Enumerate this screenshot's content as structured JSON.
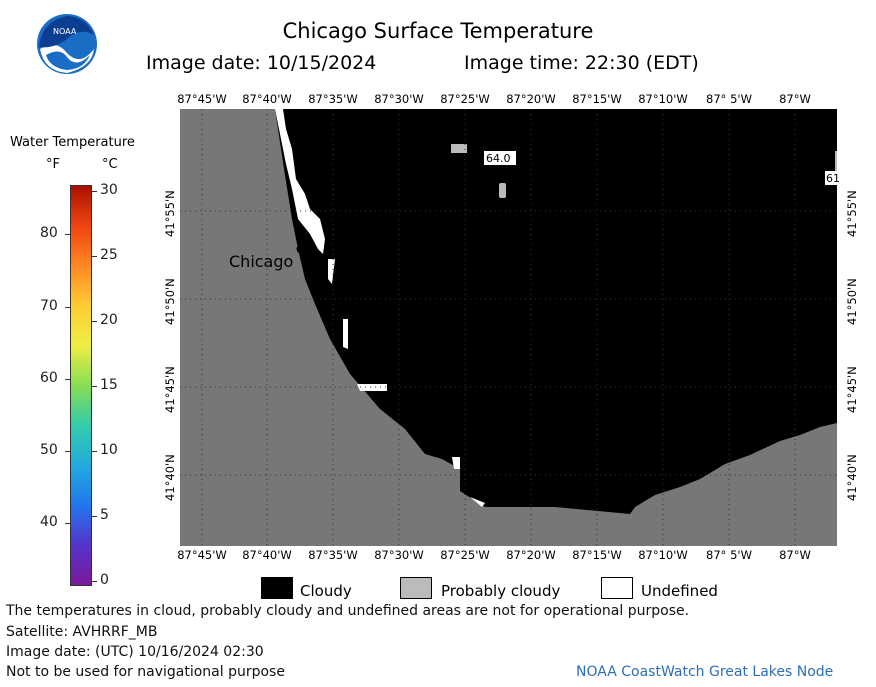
{
  "header": {
    "title": "Chicago Surface Temperature",
    "image_date": "Image date: 10/15/2024",
    "image_time": "Image time: 22:30 (EDT)"
  },
  "logo": {
    "text": "NOAA"
  },
  "scale": {
    "title": "Water Temperature",
    "unit_f": "°F",
    "unit_c": "°C",
    "f_ticks": [
      "80",
      "70",
      "60",
      "50",
      "40"
    ],
    "c_ticks": [
      "30",
      "25",
      "20",
      "15",
      "10",
      "5",
      "0"
    ],
    "range_c": [
      0,
      30
    ],
    "colors": [
      "#7a1a9a",
      "#5533cc",
      "#2277ee",
      "#22aadd",
      "#33ccaa",
      "#88dd55",
      "#eeee44",
      "#ffcc33",
      "#ff8822",
      "#ee4411",
      "#aa1100"
    ]
  },
  "map": {
    "top_ticks": [
      "87°45'W",
      "87°40'W",
      "87°35'W",
      "87°30'W",
      "87°25'W",
      "87°20'W",
      "87°15'W",
      "87°10'W",
      "87° 5'W",
      "87°W"
    ],
    "bottom_ticks": [
      "87°45'W",
      "87°40'W",
      "87°35'W",
      "87°30'W",
      "87°25'W",
      "87°20'W",
      "87°15'W",
      "87°10'W",
      "87° 5'W",
      "87°W"
    ],
    "left_ticks": [
      "41°55'N",
      "41°50'N",
      "41°45'N",
      "41°40'N"
    ],
    "right_ticks": [
      "41°55'N",
      "41°50'N",
      "41°45'N",
      "41°40'N"
    ],
    "city_label": "Chicago",
    "temp_labels": [
      "64.0",
      "61"
    ],
    "colors": {
      "land": "#777777",
      "cloud": "#000000",
      "probably_cloudy": "#bbbbbb",
      "undefined": "#ffffff"
    }
  },
  "legend": {
    "cloudy": "Cloudy",
    "probably_cloudy": "Probably cloudy",
    "undefined": "Undefined"
  },
  "footer": {
    "disclaimer": "The temperatures in cloud, probably cloudy and undefined areas are not for operational purpose.",
    "satellite": "Satellite: AVHRRF_MB",
    "utc_date": "Image date: (UTC) 10/16/2024  02:30",
    "nav_warning": "Not to be used for navigational purpose",
    "credit": "NOAA CoastWatch Great Lakes Node"
  }
}
